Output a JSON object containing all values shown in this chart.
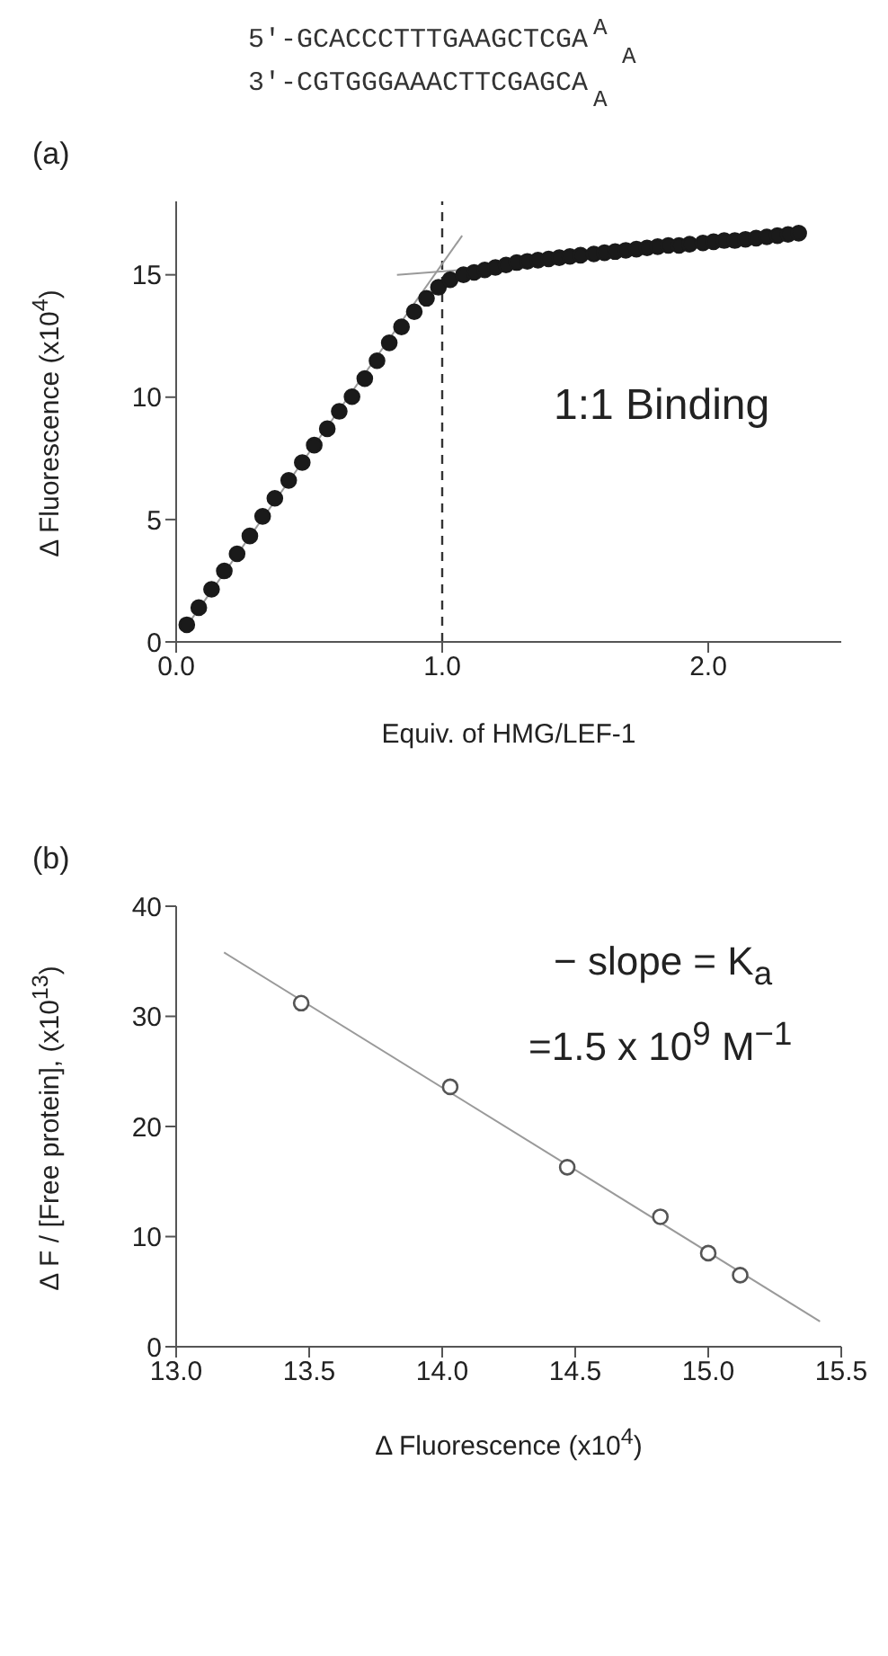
{
  "chart_data": [
    {
      "type": "other",
      "annotations": [
        "5'-GCACCCTTTGAAGCTCGA",
        "3'-CGTGGGAAACTTCGAGCA",
        "A",
        "A",
        "A"
      ]
    },
    {
      "type": "scatter",
      "title": "(a)",
      "xlabel": "Equiv. of HMG/LEF-1",
      "ylabel": "Δ Fluorescence (x10$^{4}$)",
      "xlim": [
        0,
        2.5
      ],
      "ylim": [
        0,
        18
      ],
      "xticks": [
        {
          "value": 0,
          "label": "0.0"
        },
        {
          "value": 1,
          "label": "1.0"
        },
        {
          "value": 2,
          "label": "2.0"
        }
      ],
      "yticks": [
        0,
        5,
        10,
        15
      ],
      "marker": "circle",
      "annotations": [
        "1:1 Binding"
      ],
      "ref_lines": [
        {
          "axis": "x",
          "value": 1,
          "color": "#333333",
          "line_style": "dashed"
        }
      ],
      "series": [
        {
          "type": "line",
          "marker": "none",
          "color": "#9a9a9a",
          "x": [
            0.03,
            1.075
          ],
          "values": [
            0.5,
            16.6
          ]
        },
        {
          "type": "line",
          "marker": "none",
          "color": "#9a9a9a",
          "x": [
            0.83,
            1.2
          ],
          "values": [
            15.0,
            15.3
          ]
        },
        {
          "type": "scatter",
          "color": "#1a1a1a",
          "x": [
            0.04,
            0.085,
            0.133,
            0.181,
            0.229,
            0.277,
            0.325,
            0.371,
            0.423,
            0.474,
            0.519,
            0.568,
            0.613,
            0.661,
            0.709,
            0.755,
            0.801,
            0.847,
            0.895,
            0.941,
            0.986,
            1.03,
            1.08,
            1.12,
            1.16,
            1.2,
            1.24,
            1.28,
            1.32,
            1.36,
            1.4,
            1.44,
            1.48,
            1.52,
            1.57,
            1.61,
            1.65,
            1.69,
            1.73,
            1.77,
            1.81,
            1.85,
            1.89,
            1.93,
            1.98,
            2.02,
            2.06,
            2.1,
            2.14,
            2.18,
            2.22,
            2.26,
            2.3,
            2.34
          ],
          "values": [
            0.7,
            1.4,
            2.15,
            2.9,
            3.6,
            4.33,
            5.13,
            5.87,
            6.6,
            7.33,
            8.04,
            8.71,
            9.42,
            10.02,
            10.76,
            11.49,
            12.22,
            12.87,
            13.49,
            14.04,
            14.49,
            14.8,
            15.0,
            15.1,
            15.2,
            15.3,
            15.4,
            15.5,
            15.55,
            15.6,
            15.65,
            15.7,
            15.75,
            15.8,
            15.85,
            15.9,
            15.95,
            16.0,
            16.05,
            16.1,
            16.15,
            16.2,
            16.2,
            16.25,
            16.3,
            16.35,
            16.4,
            16.4,
            16.45,
            16.5,
            16.55,
            16.6,
            16.65,
            16.7
          ]
        }
      ]
    },
    {
      "type": "scatter",
      "title": "(b)",
      "xlabel": "Δ Fluorescence (x10$^{4}$)",
      "ylabel": "Δ F / [Free protein], (x10$^{13}$)",
      "xlim": [
        13,
        15.5
      ],
      "ylim": [
        0,
        40
      ],
      "xticks": [
        {
          "value": 13,
          "label": "13.0"
        },
        {
          "value": 13.5,
          "label": "13.5"
        },
        {
          "value": 14,
          "label": "14.0"
        },
        {
          "value": 14.5,
          "label": "14.5"
        },
        {
          "value": 15,
          "label": "15.0"
        },
        {
          "value": 15.5,
          "label": "15.5"
        }
      ],
      "yticks": [
        0,
        10,
        20,
        30,
        40
      ],
      "marker": "circle",
      "annotations": [
        "− slope = K$_{a}$",
        "=1.5 x 10$^{9}$ M$^{−1}$"
      ],
      "series": [
        {
          "type": "line",
          "marker": "none",
          "color": "#9a9a9a",
          "x": [
            13.18,
            15.42
          ],
          "values": [
            35.8,
            2.3
          ]
        },
        {
          "type": "scatter",
          "color": "#555555",
          "x": [
            13.47,
            14.03,
            14.47,
            14.82,
            15.0,
            15.12
          ],
          "values": [
            31.2,
            23.6,
            16.3,
            11.8,
            8.5,
            6.5
          ]
        }
      ]
    }
  ]
}
